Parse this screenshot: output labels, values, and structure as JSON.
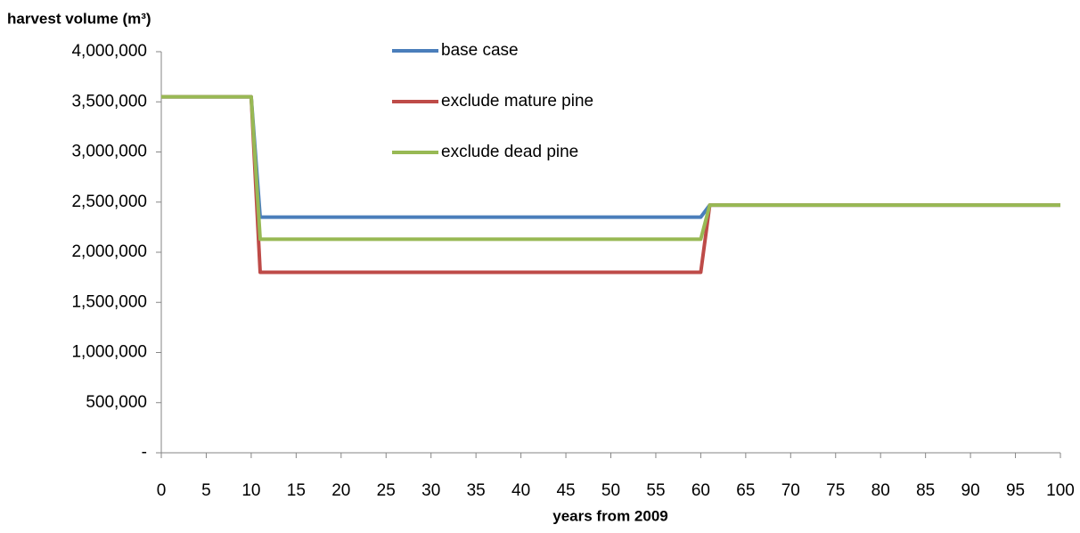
{
  "chart_data": {
    "type": "line",
    "y_label": "harvest volume (m³)",
    "x_label": "years from 2009",
    "x": [
      0,
      10,
      11,
      60,
      61,
      100
    ],
    "series": [
      {
        "name": "base case",
        "color": "#4a7ebb",
        "values": [
          3550000,
          3550000,
          2350000,
          2350000,
          2470000,
          2470000
        ]
      },
      {
        "name": "exclude mature pine",
        "color": "#be4b48",
        "values": [
          3550000,
          3550000,
          1800000,
          1800000,
          2470000,
          2470000
        ]
      },
      {
        "name": "exclude dead pine",
        "color": "#98b954",
        "values": [
          3550000,
          3550000,
          2130000,
          2130000,
          2470000,
          2470000
        ]
      }
    ],
    "xlim": [
      0,
      100
    ],
    "xticks": [
      0,
      5,
      10,
      15,
      20,
      25,
      30,
      35,
      40,
      45,
      50,
      55,
      60,
      65,
      70,
      75,
      80,
      85,
      90,
      95,
      100
    ],
    "ylim": [
      0,
      4000000
    ],
    "yticks": [
      {
        "value": 0,
        "label": "-"
      },
      {
        "value": 500000,
        "label": "500,000"
      },
      {
        "value": 1000000,
        "label": "1,000,000"
      },
      {
        "value": 1500000,
        "label": "1,500,000"
      },
      {
        "value": 2000000,
        "label": "2,000,000"
      },
      {
        "value": 2500000,
        "label": "2,500,000"
      },
      {
        "value": 3000000,
        "label": "3,000,000"
      },
      {
        "value": 3500000,
        "label": "3,500,000"
      },
      {
        "value": 4000000,
        "label": "4,000,000"
      }
    ],
    "grid": false,
    "legend": "top"
  }
}
